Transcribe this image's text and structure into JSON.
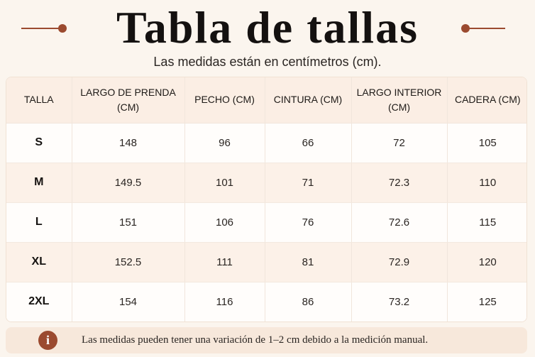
{
  "header": {
    "title": "Tabla de tallas",
    "subtitle": "Las medidas están en centímetros (cm)."
  },
  "table": {
    "columns": [
      "TALLA",
      "LARGO DE PRENDA (CM)",
      "PECHO (CM)",
      "CINTURA (CM)",
      "LARGO INTERIOR (CM)",
      "CADERA (CM)"
    ],
    "rows": [
      [
        "S",
        "148",
        "96",
        "66",
        "72",
        "105"
      ],
      [
        "M",
        "149.5",
        "101",
        "71",
        "72.3",
        "110"
      ],
      [
        "L",
        "151",
        "106",
        "76",
        "72.6",
        "115"
      ],
      [
        "XL",
        "152.5",
        "111",
        "81",
        "72.9",
        "120"
      ],
      [
        "2XL",
        "154",
        "116",
        "86",
        "73.2",
        "125"
      ]
    ]
  },
  "note": {
    "icon": "info-icon",
    "icon_glyph": "i",
    "text": "Las medidas pueden tener una variación de 1–2 cm debido a la medición manual."
  },
  "colors": {
    "background": "#fbf5ee",
    "accent": "#9b4a2f",
    "header_row": "#fbeee4",
    "alt_row": "#fcf1e8",
    "note_bg": "#f7e8db"
  }
}
